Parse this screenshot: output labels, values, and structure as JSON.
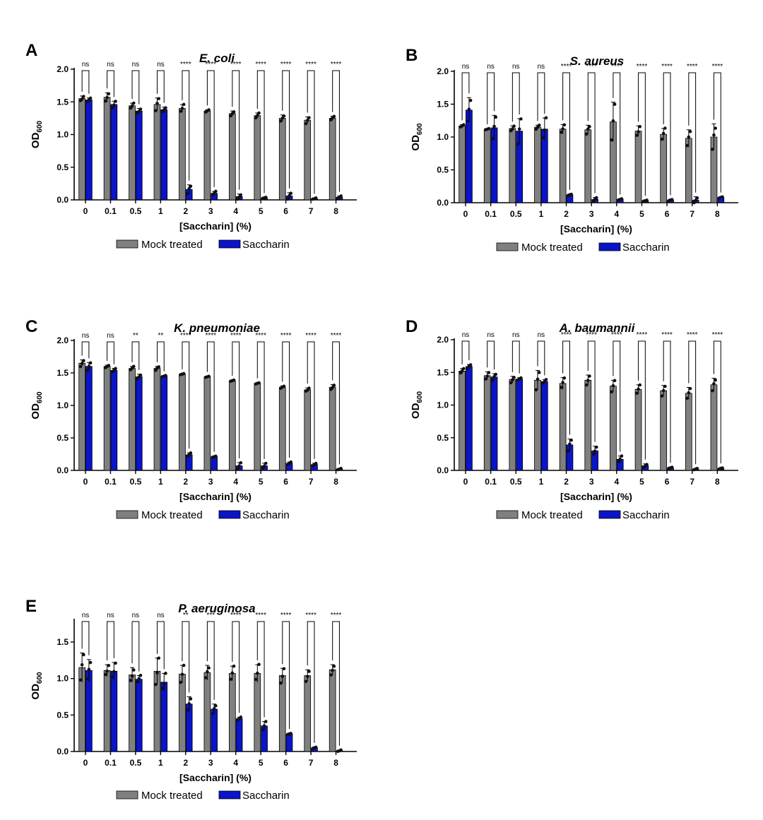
{
  "figure": {
    "legend": {
      "mock_label": "Mock treated",
      "sacc_label": "Saccharin"
    },
    "colors": {
      "mock": "#808080",
      "saccharin": "#0a14c8",
      "axis": "#000000"
    }
  },
  "chart_data": [
    {
      "type": "bar",
      "panel_letter": "A",
      "title": "E. coli",
      "xlabel": "[Saccharin] (%)",
      "ylabel_main": "OD",
      "ylabel_sub": "600",
      "ylim": [
        0,
        2.0
      ],
      "yticks": [
        "0.0",
        "0.5",
        "1.0",
        "1.5",
        "2.0"
      ],
      "categories": [
        "0",
        "0.1",
        "0.5",
        "1",
        "2",
        "3",
        "4",
        "5",
        "6",
        "7",
        "8"
      ],
      "series": [
        {
          "name": "Mock treated",
          "values": [
            1.55,
            1.57,
            1.44,
            1.46,
            1.4,
            1.36,
            1.32,
            1.29,
            1.25,
            1.22,
            1.25
          ],
          "errors": [
            0.04,
            0.07,
            0.04,
            0.1,
            0.06,
            0.02,
            0.04,
            0.04,
            0.05,
            0.05,
            0.03
          ]
        },
        {
          "name": "Saccharin",
          "values": [
            1.53,
            1.46,
            1.36,
            1.38,
            0.16,
            0.1,
            0.05,
            0.03,
            0.06,
            0.02,
            0.04
          ],
          "errors": [
            0.03,
            0.05,
            0.04,
            0.04,
            0.07,
            0.03,
            0.04,
            0.01,
            0.05,
            0.01,
            0.02
          ]
        }
      ],
      "significance": [
        "ns",
        "ns",
        "ns",
        "ns",
        "****",
        "****",
        "****",
        "****",
        "****",
        "****",
        "****"
      ]
    },
    {
      "type": "bar",
      "panel_letter": "B",
      "title": "S. aureus",
      "xlabel": "[Saccharin] (%)",
      "ylabel_main": "OD",
      "ylabel_sub": "600",
      "ylim": [
        0,
        2.0
      ],
      "yticks": [
        "0.0",
        "0.5",
        "1.0",
        "1.5",
        "2.0"
      ],
      "categories": [
        "0",
        "0.1",
        "0.5",
        "1",
        "2",
        "3",
        "4",
        "5",
        "6",
        "7",
        "8"
      ],
      "series": [
        {
          "name": "Mock treated",
          "values": [
            1.17,
            1.12,
            1.13,
            1.15,
            1.12,
            1.11,
            1.23,
            1.09,
            1.04,
            0.98,
            1.0
          ],
          "errors": [
            0.02,
            0.01,
            0.04,
            0.03,
            0.07,
            0.07,
            0.3,
            0.08,
            0.09,
            0.13,
            0.2
          ]
        },
        {
          "name": "Saccharin",
          "values": [
            1.41,
            1.14,
            1.09,
            1.12,
            0.12,
            0.05,
            0.05,
            0.03,
            0.04,
            0.04,
            0.08
          ],
          "errors": [
            0.19,
            0.19,
            0.19,
            0.17,
            0.01,
            0.03,
            0.01,
            0.01,
            0.01,
            0.05,
            0.01
          ]
        }
      ],
      "significance": [
        "ns",
        "ns",
        "ns",
        "ns",
        "****",
        "****",
        "****",
        "****",
        "****",
        "****",
        "****"
      ]
    },
    {
      "type": "bar",
      "panel_letter": "C",
      "title": "K. pneumoniae",
      "xlabel": "[Saccharin] (%)",
      "ylabel_main": "OD",
      "ylabel_sub": "600",
      "ylim": [
        0,
        2.0
      ],
      "yticks": [
        "0.0",
        "0.5",
        "1.0",
        "1.5",
        "2.0"
      ],
      "categories": [
        "0",
        "0.1",
        "0.5",
        "1",
        "2",
        "3",
        "4",
        "5",
        "6",
        "7",
        "8"
      ],
      "series": [
        {
          "name": "Mock treated",
          "values": [
            1.65,
            1.6,
            1.57,
            1.57,
            1.48,
            1.44,
            1.38,
            1.34,
            1.28,
            1.24,
            1.28
          ],
          "errors": [
            0.05,
            0.02,
            0.03,
            0.03,
            0.01,
            0.01,
            0.01,
            0.01,
            0.02,
            0.03,
            0.04
          ]
        },
        {
          "name": "Saccharin",
          "values": [
            1.6,
            1.54,
            1.44,
            1.45,
            0.24,
            0.21,
            0.07,
            0.07,
            0.11,
            0.09,
            0.02
          ],
          "errors": [
            0.06,
            0.03,
            0.04,
            0.01,
            0.03,
            0.01,
            0.05,
            0.04,
            0.02,
            0.02,
            0.01
          ]
        }
      ],
      "significance": [
        "ns",
        "ns",
        "**",
        "**",
        "****",
        "****",
        "****",
        "****",
        "****",
        "****",
        "****"
      ]
    },
    {
      "type": "bar",
      "panel_letter": "D",
      "title": "A. baumannii",
      "xlabel": "[Saccharin] (%)",
      "ylabel_main": "OD",
      "ylabel_sub": "600",
      "ylim": [
        0,
        2.0
      ],
      "yticks": [
        "0.0",
        "0.5",
        "1.0",
        "1.5",
        "2.0"
      ],
      "categories": [
        "0",
        "0.1",
        "0.5",
        "1",
        "2",
        "3",
        "4",
        "5",
        "6",
        "7",
        "8"
      ],
      "series": [
        {
          "name": "Mock treated",
          "values": [
            1.52,
            1.45,
            1.39,
            1.38,
            1.33,
            1.38,
            1.29,
            1.24,
            1.22,
            1.18,
            1.31
          ],
          "errors": [
            0.04,
            0.06,
            0.05,
            0.15,
            0.09,
            0.08,
            0.09,
            0.07,
            0.08,
            0.09,
            0.1
          ]
        },
        {
          "name": "Saccharin",
          "values": [
            1.59,
            1.43,
            1.4,
            1.36,
            0.39,
            0.3,
            0.17,
            0.07,
            0.04,
            0.02,
            0.03
          ],
          "errors": [
            0.03,
            0.05,
            0.02,
            0.03,
            0.09,
            0.07,
            0.05,
            0.03,
            0.01,
            0.01,
            0.01
          ]
        }
      ],
      "significance": [
        "ns",
        "ns",
        "ns",
        "ns",
        "****",
        "****",
        "****",
        "****",
        "****",
        "****",
        "****"
      ]
    },
    {
      "type": "bar",
      "panel_letter": "E",
      "title": "P. aeruginosa",
      "xlabel": "[Saccharin] (%)",
      "ylabel_main": "OD",
      "ylabel_sub": "600",
      "ylim": [
        0,
        1.8
      ],
      "yticks": [
        "0.0",
        "0.5",
        "1.0",
        "1.5"
      ],
      "categories": [
        "0",
        "0.1",
        "0.5",
        "1",
        "2",
        "3",
        "4",
        "5",
        "6",
        "7",
        "8"
      ],
      "series": [
        {
          "name": "Mock treated",
          "values": [
            1.15,
            1.11,
            1.05,
            1.1,
            1.06,
            1.08,
            1.07,
            1.07,
            1.04,
            1.04,
            1.12
          ],
          "errors": [
            0.2,
            0.08,
            0.1,
            0.18,
            0.12,
            0.1,
            0.1,
            0.12,
            0.1,
            0.08,
            0.07
          ]
        },
        {
          "name": "Saccharin",
          "values": [
            1.11,
            1.1,
            0.99,
            0.95,
            0.65,
            0.58,
            0.45,
            0.35,
            0.24,
            0.05,
            0.01
          ],
          "errors": [
            0.15,
            0.12,
            0.05,
            0.12,
            0.1,
            0.07,
            0.02,
            0.06,
            0.01,
            0.01,
            0.01
          ]
        }
      ],
      "significance": [
        "ns",
        "ns",
        "ns",
        "ns",
        "**",
        "***",
        "****",
        "****",
        "****",
        "****",
        "****"
      ]
    }
  ]
}
